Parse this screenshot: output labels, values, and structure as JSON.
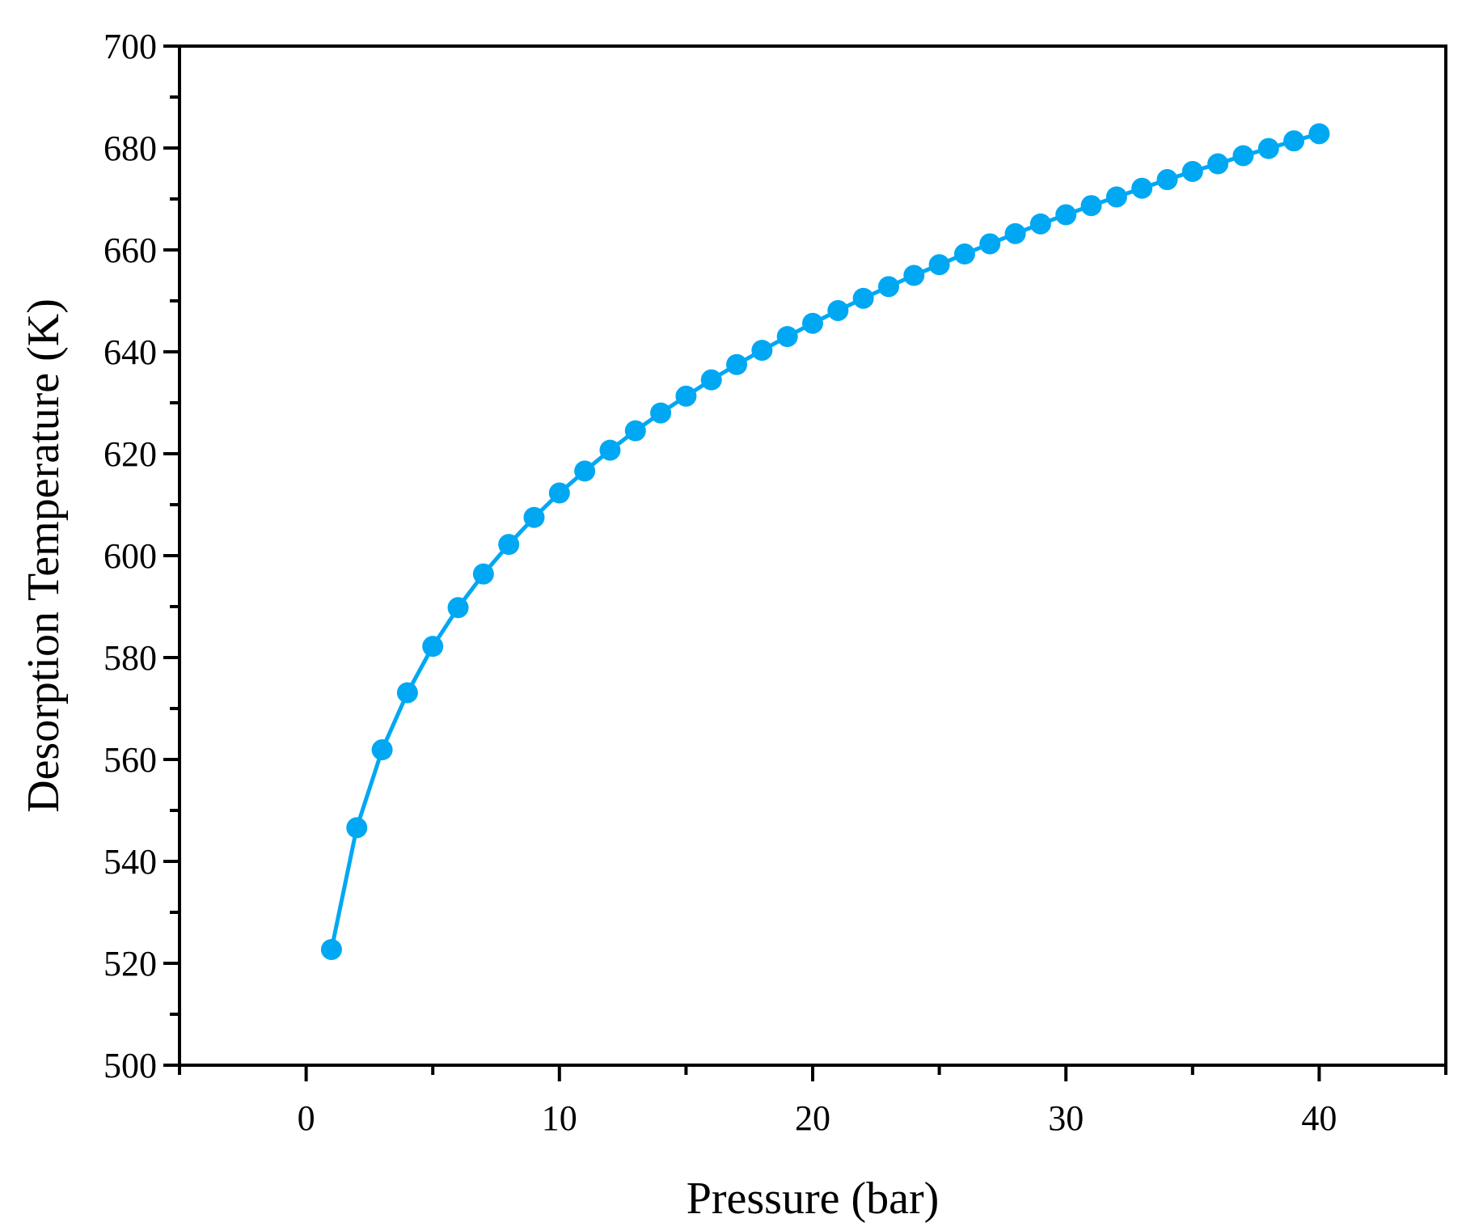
{
  "chart_data": {
    "type": "line",
    "title": "",
    "xlabel": "Pressure (bar)",
    "ylabel": "Desorption Temperature (K)",
    "xlim": [
      -5,
      45
    ],
    "ylim": [
      500,
      700
    ],
    "xticks": [
      0,
      10,
      20,
      30,
      40
    ],
    "xtick_labels": [
      "0",
      "10",
      "20",
      "30",
      "40"
    ],
    "xminor_ticks": [
      -5,
      5,
      15,
      25,
      35,
      45
    ],
    "yticks": [
      500,
      520,
      540,
      560,
      580,
      600,
      620,
      640,
      660,
      680,
      700
    ],
    "ytick_labels": [
      "500",
      "520",
      "540",
      "560",
      "580",
      "600",
      "620",
      "640",
      "660",
      "680",
      "700"
    ],
    "grid": false,
    "legend": "none",
    "series": [
      {
        "name": "Desorption Temperature",
        "color": "#00a8f3",
        "marker": "circle",
        "x": [
          1,
          2,
          3,
          4,
          5,
          6,
          7,
          8,
          9,
          10,
          11,
          12,
          13,
          14,
          15,
          16,
          17,
          18,
          19,
          20,
          21,
          22,
          23,
          24,
          25,
          26,
          27,
          28,
          29,
          30,
          31,
          32,
          33,
          34,
          35,
          36,
          37,
          38,
          39,
          40
        ],
        "values": [
          522.7,
          546.6,
          561.9,
          573.1,
          582.2,
          589.8,
          596.4,
          602.2,
          607.5,
          612.3,
          616.6,
          620.7,
          624.5,
          628.0,
          631.3,
          634.5,
          637.5,
          640.3,
          643.0,
          645.6,
          648.1,
          650.5,
          652.8,
          655.0,
          657.1,
          659.2,
          661.2,
          663.2,
          665.1,
          666.9,
          668.7,
          670.4,
          672.1,
          673.8,
          675.4,
          676.9,
          678.5,
          679.9,
          681.4,
          682.8
        ]
      }
    ]
  }
}
